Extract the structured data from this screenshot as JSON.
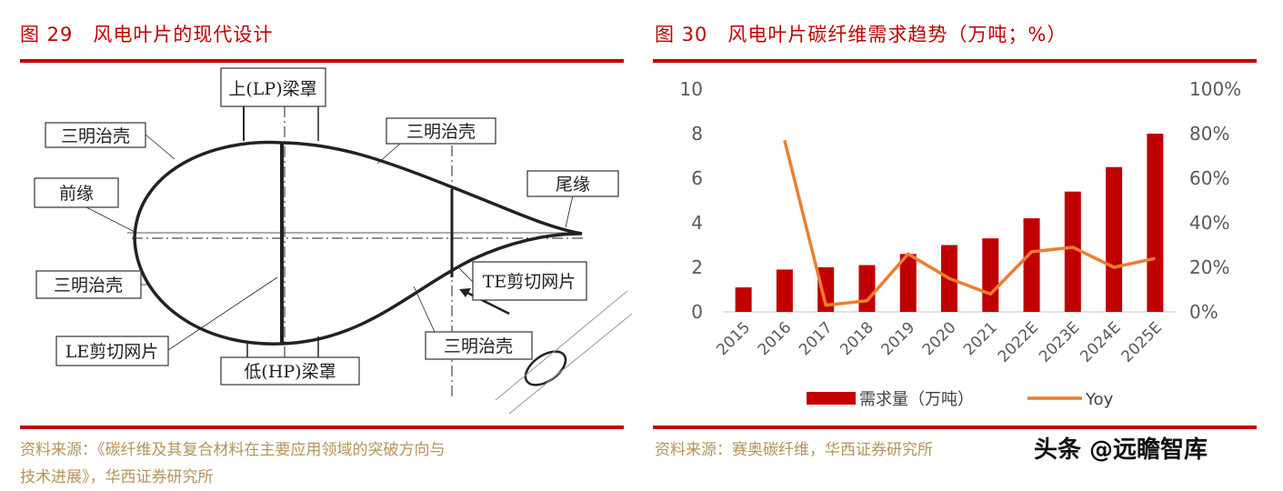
{
  "left": {
    "title": "图 29　风电叶片的现代设计",
    "labels": {
      "lp_cap": "上(LP)梁罩",
      "sandwich_tl": "三明治壳",
      "sandwich_tr": "三明治壳",
      "leading_edge": "前缘",
      "trailing_edge": "尾缘",
      "sandwich_l": "三明治壳",
      "te_web": "TE剪切网片",
      "le_web": "LE剪切网片",
      "hp_cap": "低(HP)梁罩",
      "sandwich_b": "三明治壳"
    },
    "source_line1": "资料来源：《碳纤维及其复合材料在主要应用领域的突破方向与",
    "source_line2": "技术进展》，华西证券研究所"
  },
  "right": {
    "title": "图 30　风电叶片碳纤维需求趋势（万吨；%）",
    "source": "资料来源：赛奥碳纤维，华西证券研究所"
  },
  "watermark": "头条 @远瞻智库",
  "chart_data": {
    "type": "bar+line",
    "categories": [
      "2015",
      "2016",
      "2017",
      "2018",
      "2019",
      "2020",
      "2021",
      "2022E",
      "2023E",
      "2024E",
      "2025E"
    ],
    "series": [
      {
        "name": "需求量（万吨）",
        "type": "bar",
        "axis": "left",
        "color": "#c00000",
        "values": [
          1.1,
          1.9,
          2.0,
          2.1,
          2.6,
          3.0,
          3.3,
          4.2,
          5.4,
          6.5,
          8.0
        ]
      },
      {
        "name": "Yoy",
        "type": "line",
        "axis": "right",
        "color": "#ed7d31",
        "values": [
          null,
          77,
          3,
          5,
          26,
          15,
          8,
          27,
          29,
          20,
          24
        ]
      }
    ],
    "left_axis": {
      "min": 0,
      "max": 10,
      "ticks": [
        "0",
        "2",
        "4",
        "6",
        "8",
        "10"
      ]
    },
    "right_axis": {
      "min": 0,
      "max": 100,
      "ticks": [
        "0%",
        "20%",
        "40%",
        "60%",
        "80%",
        "100%"
      ]
    },
    "grid": false,
    "legend": "bottom"
  }
}
